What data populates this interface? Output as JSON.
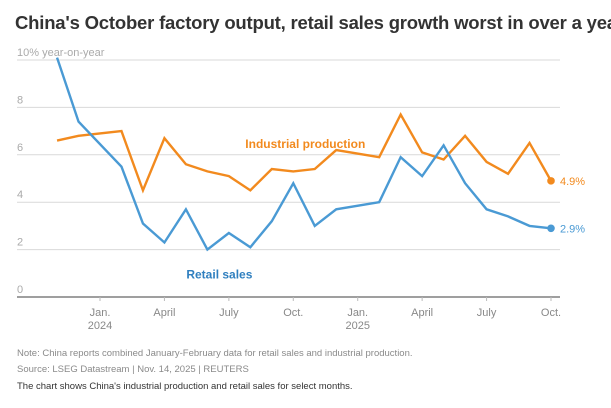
{
  "chart_data": {
    "type": "line",
    "title": "China's October factory output, retail sales growth worst in over a year",
    "ylabel": "% year-on-year",
    "ylim": [
      0,
      10
    ],
    "yticks": [
      0,
      2,
      4,
      6,
      8,
      10
    ],
    "ytick_labels": [
      "0",
      "2",
      "4",
      "6",
      "8",
      "10% year-on-year"
    ],
    "grid": true,
    "x_months": [
      "2023-11",
      "2023-12",
      "2024-02",
      "2024-03",
      "2024-04",
      "2024-05",
      "2024-06",
      "2024-07",
      "2024-08",
      "2024-09",
      "2024-10",
      "2024-11",
      "2024-12",
      "2025-02",
      "2025-03",
      "2025-04",
      "2025-05",
      "2025-06",
      "2025-07",
      "2025-08",
      "2025-09",
      "2025-10"
    ],
    "xticks": [
      {
        "month": "2024-01",
        "label": "Jan.",
        "sublabel": "2024"
      },
      {
        "month": "2024-04",
        "label": "April",
        "sublabel": ""
      },
      {
        "month": "2024-07",
        "label": "July",
        "sublabel": ""
      },
      {
        "month": "2024-10",
        "label": "Oct.",
        "sublabel": ""
      },
      {
        "month": "2025-01",
        "label": "Jan.",
        "sublabel": "2025"
      },
      {
        "month": "2025-04",
        "label": "April",
        "sublabel": ""
      },
      {
        "month": "2025-07",
        "label": "July",
        "sublabel": ""
      },
      {
        "month": "2025-10",
        "label": "Oct.",
        "sublabel": ""
      }
    ],
    "xrange": [
      "2023-09",
      "2025-10"
    ],
    "series": [
      {
        "name": "Industrial production",
        "color": "#f28a1e",
        "label_color": "#f28a1e",
        "values": [
          6.6,
          6.8,
          7.0,
          4.5,
          6.7,
          5.6,
          5.3,
          5.1,
          4.5,
          5.4,
          5.3,
          5.4,
          6.2,
          5.9,
          7.7,
          6.1,
          5.8,
          6.8,
          5.7,
          5.2,
          6.5,
          4.9
        ],
        "end_label": "4.9%",
        "label_anchor": {
          "month": "2024-10",
          "value": 6.5
        }
      },
      {
        "name": "Retail sales",
        "color": "#4a9ad4",
        "label_color": "#2f7fbf",
        "values": [
          10.1,
          7.4,
          5.5,
          3.1,
          2.3,
          3.7,
          2.0,
          2.7,
          2.1,
          3.2,
          4.8,
          3.0,
          3.7,
          4.0,
          5.9,
          5.1,
          6.4,
          4.8,
          3.7,
          3.4,
          3.0,
          2.9
        ],
        "end_label": "2.9%",
        "label_anchor": {
          "month": "2024-06",
          "value": 1.0
        }
      }
    ]
  },
  "footer": {
    "note": "Note: China reports combined January-February data for retail sales and industrial production.",
    "source": "Source: LSEG Datastream | Nov. 14, 2025 | REUTERS",
    "description": "The chart shows China's industrial production and retail sales for select months."
  }
}
